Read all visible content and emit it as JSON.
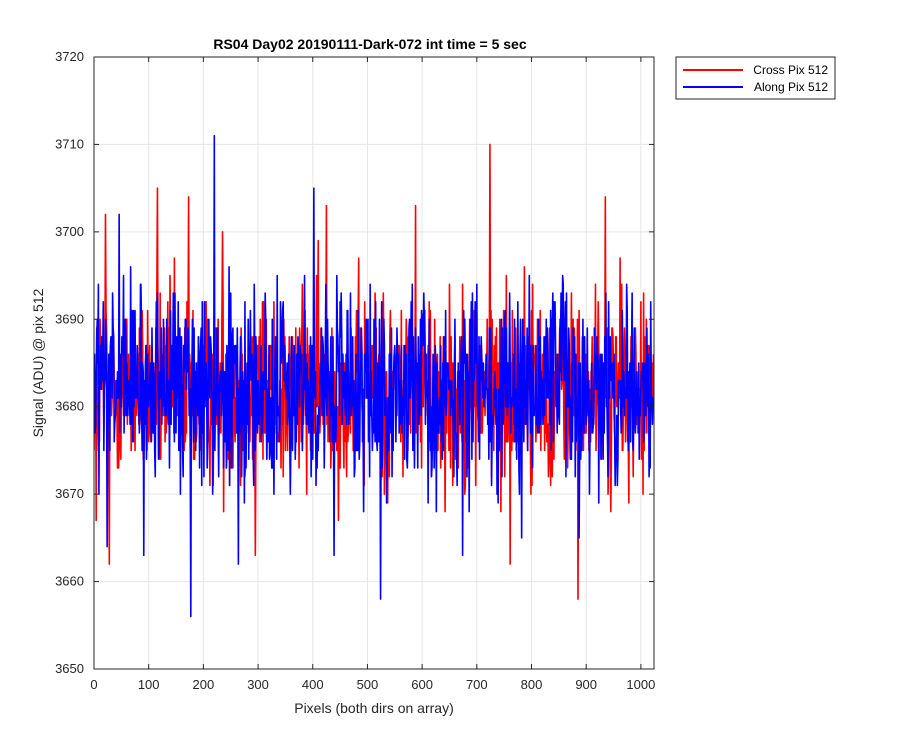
{
  "chart_data": {
    "type": "line",
    "title": "RS04 Day02 20190111-Dark-072 int time = 5 sec",
    "xlabel": "Pixels (both dirs on array)",
    "ylabel": "Signal (ADU) @ pix 512",
    "xlim": [
      0,
      1024
    ],
    "ylim": [
      3650,
      3720
    ],
    "xticks": [
      0,
      100,
      200,
      300,
      400,
      500,
      600,
      700,
      800,
      900,
      1000
    ],
    "yticks": [
      3650,
      3660,
      3670,
      3680,
      3690,
      3700,
      3710,
      3720
    ],
    "grid": true,
    "legend_position": "outside-top-right",
    "colors": {
      "cross": "#ff0000",
      "along": "#0000ff"
    },
    "series": [
      {
        "name": "Cross Pix 512",
        "color": "#ff0000",
        "n_points": 1024,
        "mean": 3682,
        "peaks": [
          {
            "x": 4,
            "y": 3667
          },
          {
            "x": 21,
            "y": 3702
          },
          {
            "x": 28,
            "y": 3662
          },
          {
            "x": 116,
            "y": 3705
          },
          {
            "x": 173,
            "y": 3704
          },
          {
            "x": 235,
            "y": 3700
          },
          {
            "x": 295,
            "y": 3663
          },
          {
            "x": 425,
            "y": 3703
          },
          {
            "x": 588,
            "y": 3703
          },
          {
            "x": 724,
            "y": 3710
          },
          {
            "x": 761,
            "y": 3662
          },
          {
            "x": 885,
            "y": 3658
          },
          {
            "x": 935,
            "y": 3704
          }
        ]
      },
      {
        "name": "Along Pix 512",
        "color": "#0000ff",
        "n_points": 1024,
        "mean": 3682,
        "peaks": [
          {
            "x": 24,
            "y": 3664
          },
          {
            "x": 46,
            "y": 3702
          },
          {
            "x": 91,
            "y": 3663
          },
          {
            "x": 177,
            "y": 3656
          },
          {
            "x": 220,
            "y": 3711
          },
          {
            "x": 264,
            "y": 3662
          },
          {
            "x": 402,
            "y": 3705
          },
          {
            "x": 439,
            "y": 3663
          },
          {
            "x": 524,
            "y": 3658
          },
          {
            "x": 674,
            "y": 3663
          },
          {
            "x": 782,
            "y": 3665
          }
        ]
      }
    ]
  }
}
